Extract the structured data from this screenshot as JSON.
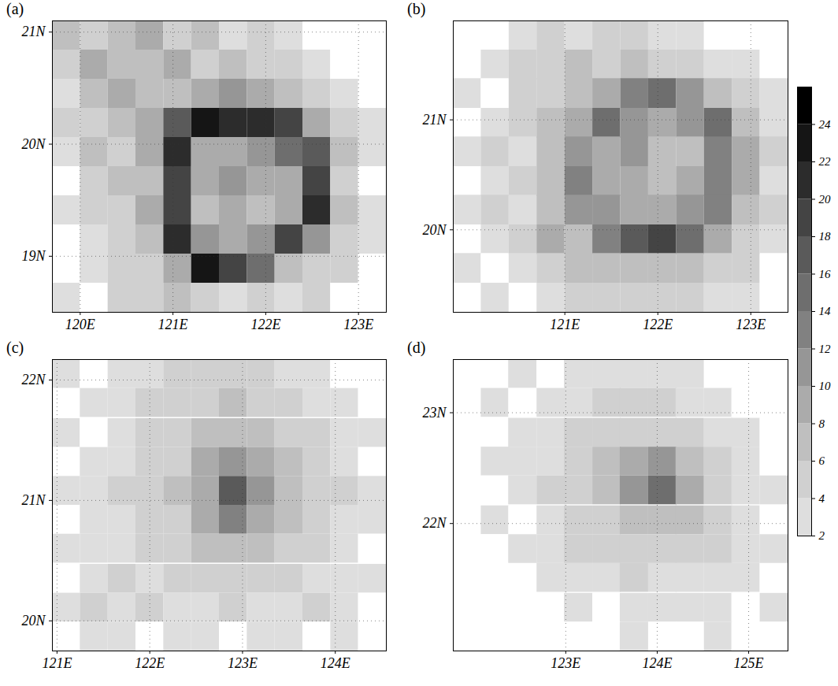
{
  "chart_data": {
    "type": "heatmap",
    "grid": true,
    "colorbar": {
      "range": [
        2,
        26
      ],
      "ticks": [
        2,
        4,
        6,
        8,
        10,
        12,
        14,
        16,
        18,
        20,
        22,
        24
      ]
    },
    "panels": [
      {
        "title": "(a)",
        "xlim": [
          119.7,
          123.3
        ],
        "ylim": [
          18.5,
          21.1
        ],
        "xticks": [
          {
            "value": 120,
            "label": "120E"
          },
          {
            "value": 121,
            "label": "121E"
          },
          {
            "value": 122,
            "label": "122E"
          },
          {
            "value": 123,
            "label": "123E"
          }
        ],
        "yticks": [
          {
            "value": 19,
            "label": "19N"
          },
          {
            "value": 20,
            "label": "20N"
          },
          {
            "value": 21,
            "label": "21N"
          }
        ],
        "x": [
          119.85,
          120.15,
          120.45,
          120.75,
          121.05,
          121.35,
          121.65,
          121.95,
          122.25,
          122.55,
          122.85,
          123.15
        ],
        "y": [
          20.97,
          20.71,
          20.45,
          20.19,
          19.93,
          19.67,
          19.41,
          19.15,
          18.89,
          18.63
        ],
        "values": [
          [
            6,
            4,
            6,
            8,
            4,
            6,
            2,
            4,
            2,
            0,
            0,
            0
          ],
          [
            4,
            8,
            6,
            6,
            8,
            4,
            6,
            4,
            4,
            2,
            0,
            0
          ],
          [
            2,
            6,
            8,
            6,
            6,
            8,
            10,
            8,
            6,
            4,
            2,
            0
          ],
          [
            4,
            4,
            6,
            8,
            16,
            22,
            20,
            20,
            18,
            8,
            4,
            2
          ],
          [
            2,
            6,
            4,
            8,
            20,
            8,
            8,
            10,
            14,
            16,
            6,
            2
          ],
          [
            0,
            4,
            6,
            6,
            18,
            8,
            10,
            8,
            8,
            18,
            4,
            0
          ],
          [
            2,
            4,
            4,
            8,
            18,
            6,
            8,
            6,
            8,
            20,
            6,
            2
          ],
          [
            0,
            2,
            4,
            6,
            20,
            10,
            8,
            10,
            18,
            10,
            4,
            2
          ],
          [
            0,
            2,
            4,
            4,
            8,
            22,
            18,
            14,
            6,
            4,
            4,
            0
          ],
          [
            2,
            0,
            4,
            4,
            6,
            4,
            2,
            4,
            2,
            4,
            0,
            0
          ]
        ]
      },
      {
        "title": "(b)",
        "xlim": [
          119.8,
          123.4
        ],
        "ylim": [
          19.25,
          21.9
        ],
        "xticks": [
          {
            "value": 121,
            "label": "121E"
          },
          {
            "value": 122,
            "label": "122E"
          },
          {
            "value": 123,
            "label": "123E"
          }
        ],
        "yticks": [
          {
            "value": 20,
            "label": "20N"
          },
          {
            "value": 21,
            "label": "21N"
          }
        ],
        "x": [
          119.95,
          120.25,
          120.55,
          120.85,
          121.15,
          121.45,
          121.75,
          122.05,
          122.35,
          122.65,
          122.95,
          123.25
        ],
        "y": [
          21.77,
          21.5,
          21.24,
          20.97,
          20.71,
          20.44,
          20.18,
          19.91,
          19.65,
          19.38
        ],
        "values": [
          [
            0,
            0,
            2,
            4,
            2,
            4,
            4,
            2,
            2,
            0,
            0,
            0
          ],
          [
            0,
            2,
            4,
            4,
            6,
            4,
            6,
            4,
            4,
            2,
            2,
            0
          ],
          [
            2,
            0,
            4,
            4,
            6,
            8,
            12,
            14,
            10,
            6,
            4,
            2
          ],
          [
            0,
            2,
            4,
            6,
            8,
            14,
            10,
            8,
            10,
            14,
            6,
            2
          ],
          [
            2,
            4,
            2,
            6,
            10,
            8,
            10,
            6,
            6,
            12,
            8,
            4
          ],
          [
            0,
            2,
            4,
            6,
            12,
            8,
            8,
            6,
            8,
            12,
            8,
            2
          ],
          [
            2,
            4,
            2,
            6,
            10,
            10,
            8,
            8,
            10,
            12,
            6,
            4
          ],
          [
            0,
            2,
            4,
            8,
            6,
            12,
            16,
            18,
            14,
            8,
            4,
            2
          ],
          [
            2,
            0,
            2,
            4,
            6,
            6,
            6,
            6,
            6,
            4,
            4,
            0
          ],
          [
            0,
            2,
            0,
            2,
            4,
            4,
            4,
            4,
            4,
            2,
            2,
            0
          ]
        ]
      },
      {
        "title": "(c)",
        "xlim": [
          120.95,
          124.55
        ],
        "ylim": [
          19.75,
          22.17
        ],
        "xticks": [
          {
            "value": 121,
            "label": "121E"
          },
          {
            "value": 122,
            "label": "122E"
          },
          {
            "value": 123,
            "label": "123E"
          },
          {
            "value": 124,
            "label": "124E"
          }
        ],
        "yticks": [
          {
            "value": 20,
            "label": "20N"
          },
          {
            "value": 21,
            "label": "21N"
          },
          {
            "value": 22,
            "label": "22N"
          }
        ],
        "x": [
          121.1,
          121.4,
          121.7,
          122.0,
          122.3,
          122.6,
          122.9,
          123.2,
          123.5,
          123.8,
          124.1,
          124.4
        ],
        "y": [
          22.05,
          21.81,
          21.56,
          21.32,
          21.08,
          20.84,
          20.6,
          20.35,
          20.11,
          19.87
        ],
        "values": [
          [
            2,
            0,
            2,
            2,
            4,
            4,
            4,
            4,
            2,
            2,
            0,
            0
          ],
          [
            0,
            2,
            2,
            4,
            4,
            4,
            6,
            4,
            4,
            2,
            2,
            0
          ],
          [
            2,
            0,
            2,
            4,
            4,
            6,
            6,
            6,
            4,
            4,
            2,
            2
          ],
          [
            0,
            2,
            2,
            4,
            4,
            8,
            10,
            8,
            6,
            4,
            2,
            0
          ],
          [
            2,
            2,
            4,
            4,
            6,
            8,
            16,
            10,
            6,
            4,
            4,
            2
          ],
          [
            0,
            2,
            2,
            4,
            4,
            8,
            12,
            8,
            6,
            4,
            2,
            2
          ],
          [
            2,
            2,
            2,
            4,
            4,
            6,
            6,
            6,
            4,
            4,
            2,
            0
          ],
          [
            0,
            2,
            4,
            2,
            4,
            4,
            4,
            4,
            4,
            2,
            2,
            2
          ],
          [
            2,
            4,
            2,
            4,
            2,
            2,
            4,
            2,
            2,
            4,
            2,
            0
          ],
          [
            0,
            2,
            2,
            0,
            2,
            2,
            0,
            2,
            2,
            0,
            2,
            0
          ]
        ]
      },
      {
        "title": "(d)",
        "xlim": [
          121.77,
          125.43
        ],
        "ylim": [
          20.85,
          23.48
        ],
        "xticks": [
          {
            "value": 123,
            "label": "123E"
          },
          {
            "value": 124,
            "label": "124E"
          },
          {
            "value": 125,
            "label": "125E"
          }
        ],
        "yticks": [
          {
            "value": 22,
            "label": "22N"
          },
          {
            "value": 23,
            "label": "23N"
          }
        ],
        "x": [
          121.92,
          122.23,
          122.53,
          122.84,
          123.14,
          123.45,
          123.75,
          124.06,
          124.36,
          124.67,
          124.97,
          125.28
        ],
        "y": [
          23.35,
          23.09,
          22.82,
          22.56,
          22.3,
          22.03,
          21.77,
          21.51,
          21.24,
          20.98
        ],
        "values": [
          [
            0,
            0,
            2,
            0,
            2,
            2,
            2,
            2,
            2,
            0,
            0,
            0
          ],
          [
            0,
            2,
            0,
            2,
            2,
            4,
            4,
            4,
            2,
            2,
            0,
            0
          ],
          [
            0,
            0,
            2,
            2,
            4,
            4,
            4,
            4,
            4,
            2,
            2,
            0
          ],
          [
            0,
            2,
            2,
            2,
            4,
            6,
            8,
            10,
            6,
            4,
            2,
            0
          ],
          [
            0,
            0,
            2,
            4,
            4,
            6,
            10,
            14,
            8,
            4,
            2,
            2
          ],
          [
            0,
            2,
            0,
            2,
            4,
            4,
            6,
            6,
            6,
            4,
            2,
            0
          ],
          [
            0,
            0,
            2,
            2,
            4,
            4,
            4,
            4,
            4,
            4,
            2,
            2
          ],
          [
            0,
            0,
            0,
            2,
            2,
            2,
            4,
            2,
            2,
            2,
            2,
            0
          ],
          [
            0,
            0,
            0,
            0,
            2,
            0,
            2,
            2,
            2,
            2,
            0,
            2
          ],
          [
            0,
            0,
            0,
            0,
            0,
            0,
            2,
            0,
            0,
            2,
            0,
            0
          ]
        ]
      }
    ]
  }
}
